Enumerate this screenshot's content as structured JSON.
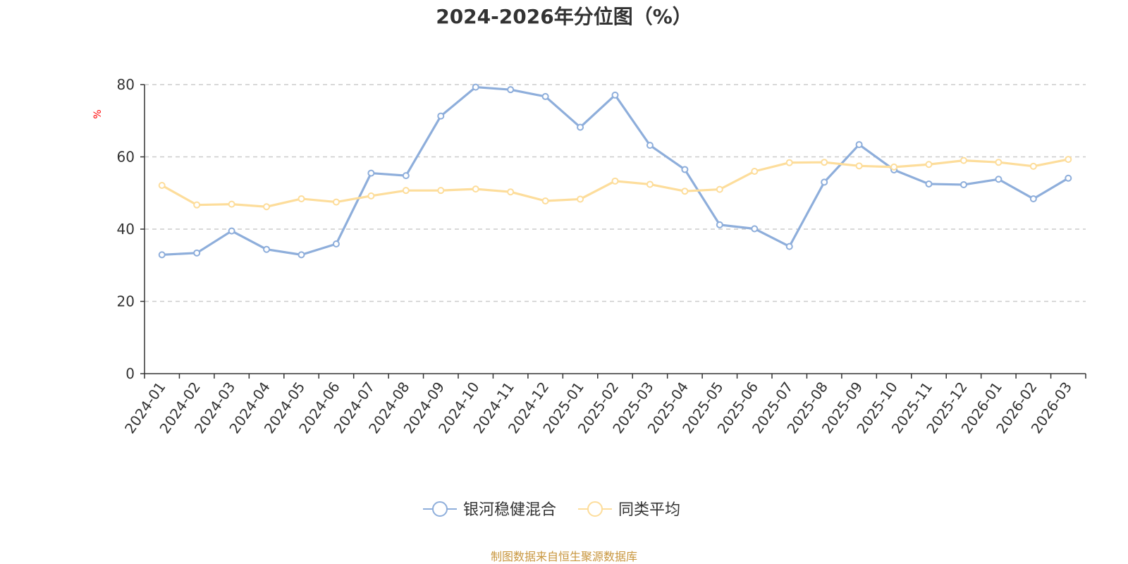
{
  "chart_data": {
    "type": "line",
    "title": "2024-2026年分位图（%）",
    "ylabel": "%",
    "xlabel": "",
    "ylim": [
      0,
      80
    ],
    "yticks": [
      0,
      20,
      40,
      60,
      80
    ],
    "grid": true,
    "legend_position": "bottom-center",
    "categories": [
      "2024-01",
      "2024-02",
      "2024-03",
      "2024-04",
      "2024-05",
      "2024-06",
      "2024-07",
      "2024-08",
      "2024-09",
      "2024-10",
      "2024-11",
      "2024-12",
      "2025-01",
      "2025-02",
      "2025-03",
      "2025-04",
      "2025-05",
      "2025-06",
      "2025-07",
      "2025-08",
      "2025-09",
      "2025-10",
      "2025-11",
      "2025-12",
      "2026-01",
      "2026-02",
      "2026-03"
    ],
    "series": [
      {
        "name": "银河稳健混合",
        "color": "#8eaedb",
        "values": [
          32.9,
          33.4,
          39.5,
          34.4,
          32.9,
          35.9,
          55.5,
          54.8,
          71.3,
          79.3,
          78.6,
          76.7,
          68.2,
          77.1,
          63.2,
          56.5,
          41.2,
          40.1,
          35.2,
          53.0,
          63.4,
          56.4,
          52.5,
          52.3,
          53.8,
          48.4,
          54.1
        ]
      },
      {
        "name": "同类平均",
        "color": "#fddd9b",
        "values": [
          52.1,
          46.7,
          46.9,
          46.2,
          48.4,
          47.5,
          49.2,
          50.7,
          50.7,
          51.1,
          50.3,
          47.8,
          48.3,
          53.3,
          52.4,
          50.5,
          51.0,
          56.0,
          58.4,
          58.5,
          57.5,
          57.2,
          57.9,
          59.0,
          58.5,
          57.4,
          59.3
        ]
      }
    ]
  },
  "source_text": "制图数据来自恒生聚源数据库"
}
